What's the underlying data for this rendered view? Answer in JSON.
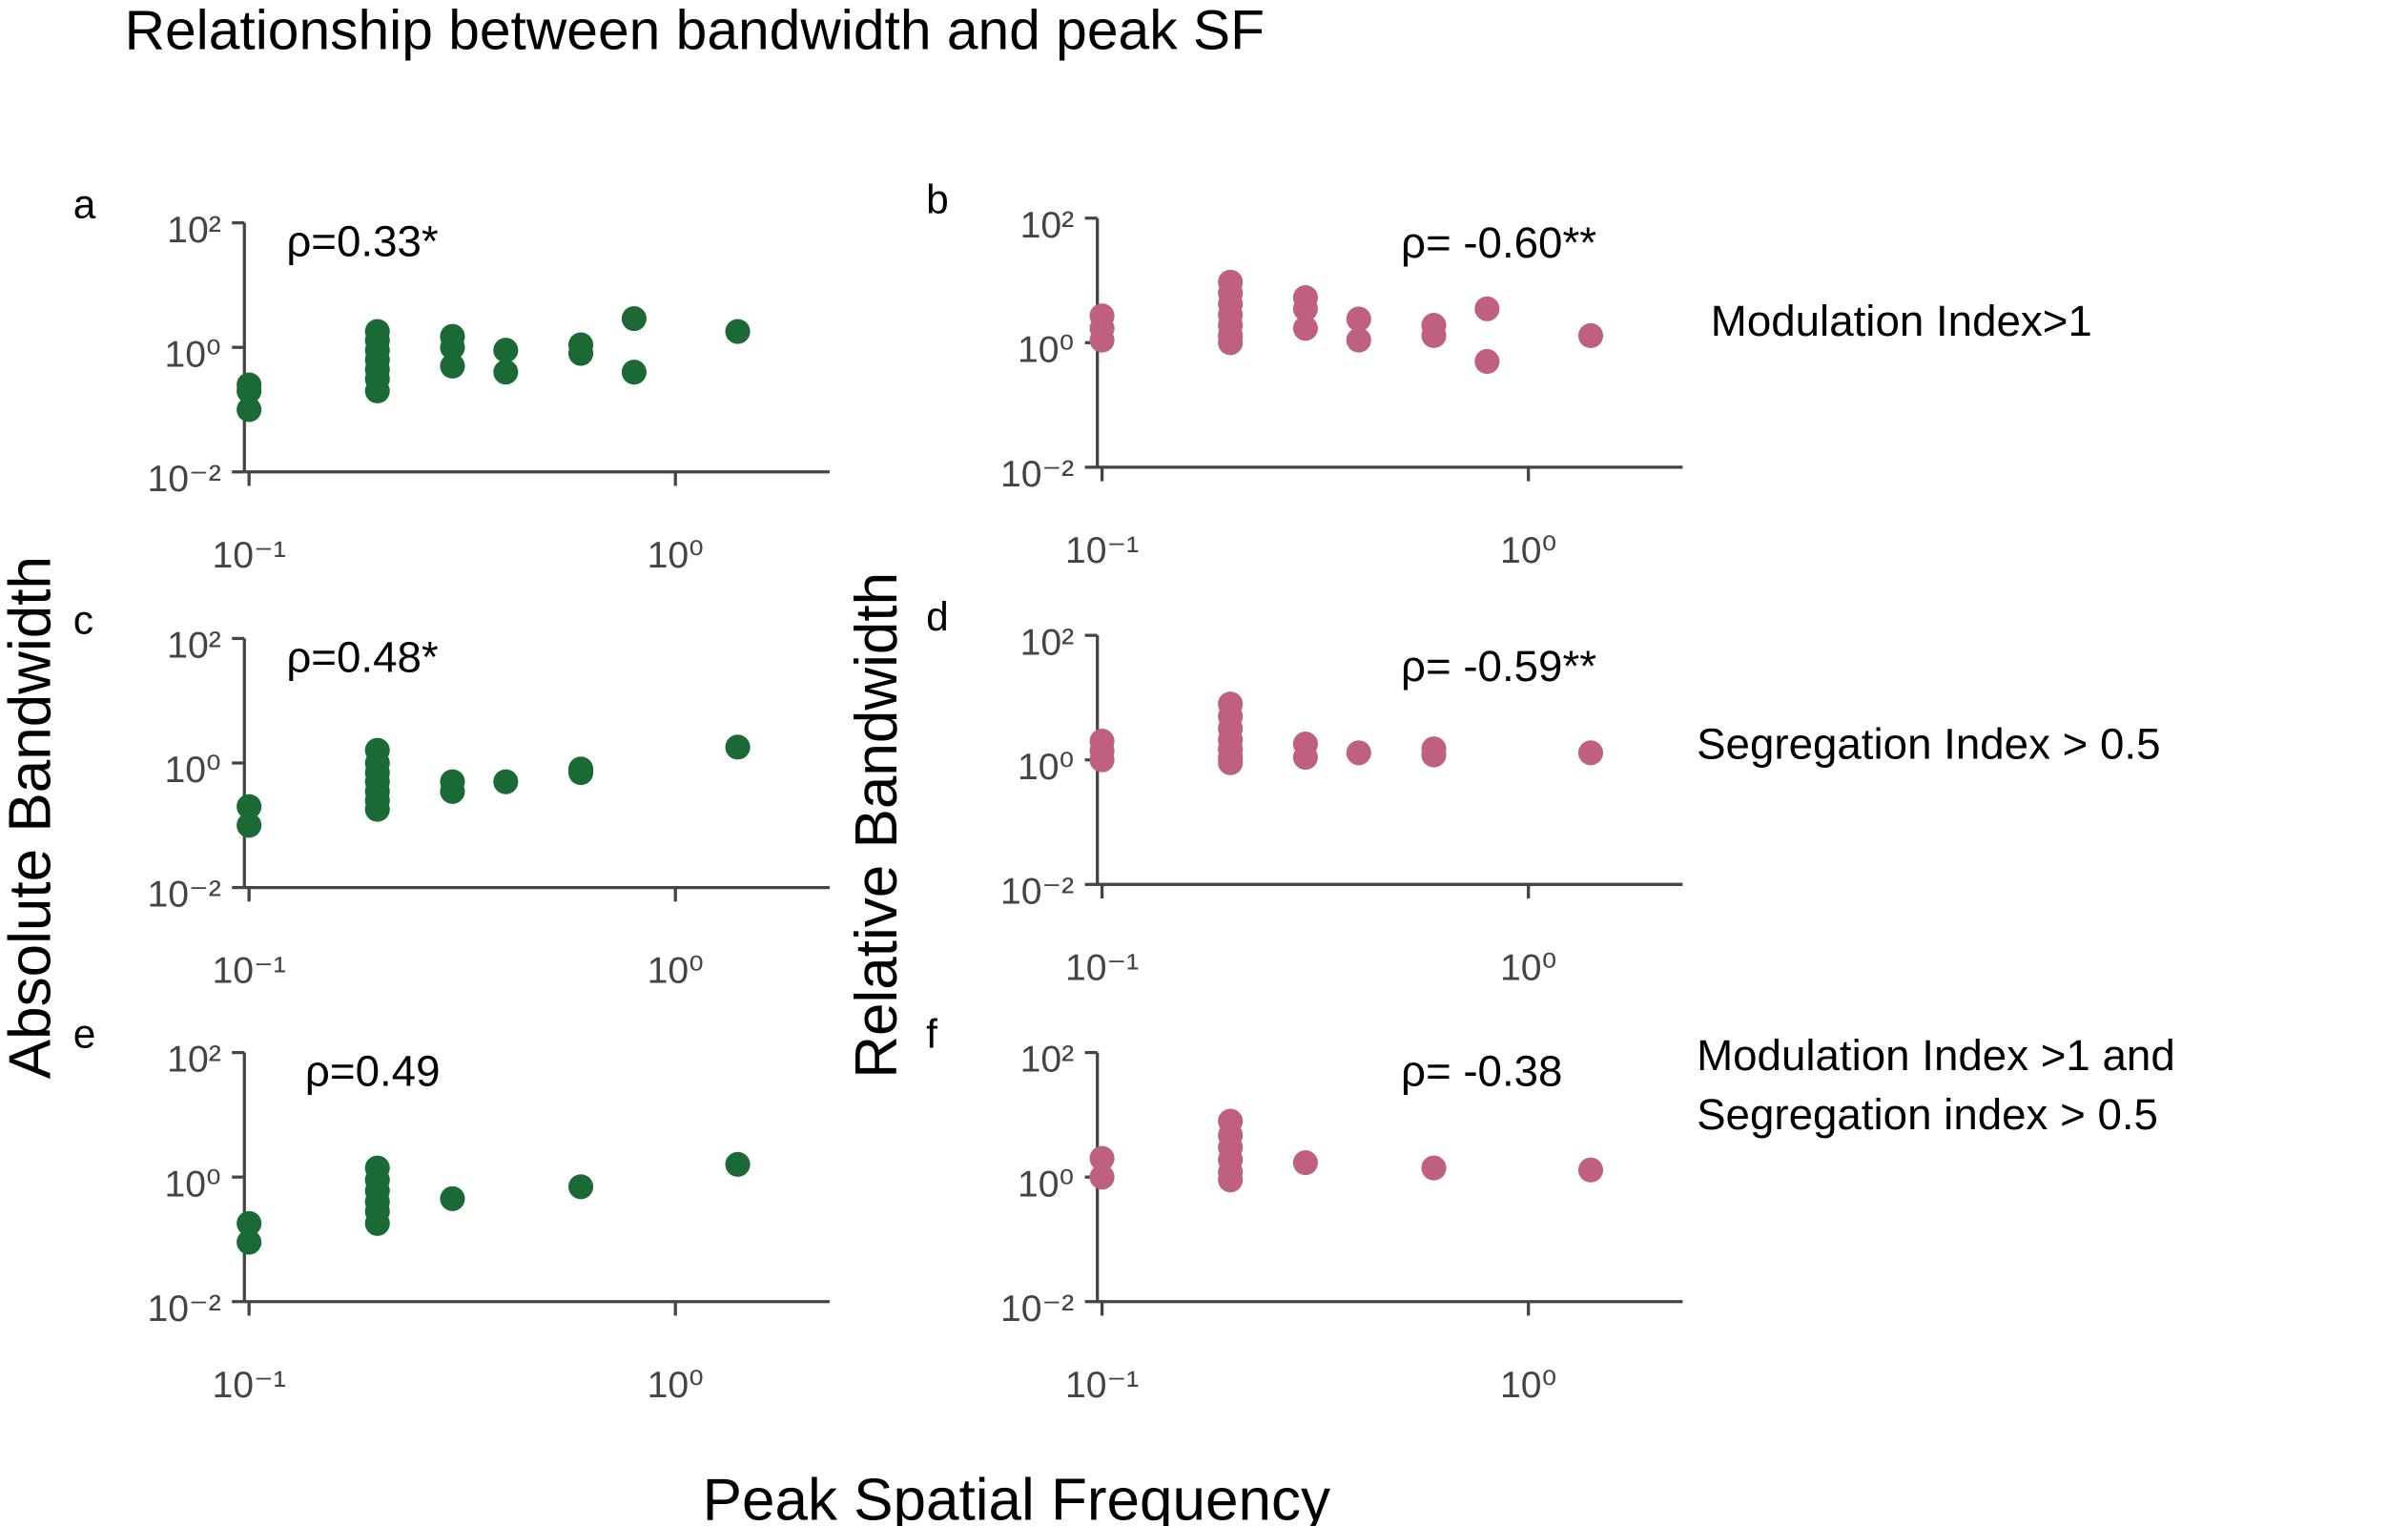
{
  "title": "Relationship between bandwidth and peak SF",
  "x_label": "Peak Spatial Frequency",
  "y_labels": [
    "Absolute Bandwidth",
    "Relative Bandwidth"
  ],
  "row_labels": [
    [
      "Modulation Index>1"
    ],
    [
      "Segregation Index > 0.5"
    ],
    [
      "Modulation Index  >1 and",
      "Segregation index > 0.5"
    ]
  ],
  "chart_data": [
    {
      "type": "scatter",
      "panel": "a",
      "annotation": "ρ=0.33*",
      "color": "#1b6a36",
      "log_x": true,
      "log_y": true,
      "xlim": [
        0.1,
        2.3
      ],
      "ylim": [
        0.01,
        100
      ],
      "xticks": [
        {
          "value": 0.1,
          "label": "10⁻¹"
        },
        {
          "value": 1,
          "label": "10⁰"
        }
      ],
      "yticks": [
        {
          "value": 0.01,
          "label": "10⁻²"
        },
        {
          "value": 1,
          "label": "10⁰"
        },
        {
          "value": 100,
          "label": "10²"
        }
      ],
      "x": [
        0.1,
        0.1,
        0.1,
        0.2,
        0.2,
        0.2,
        0.2,
        0.2,
        0.2,
        0.2,
        0.3,
        0.3,
        0.3,
        0.4,
        0.4,
        0.6,
        0.6,
        0.8,
        0.8,
        1.4
      ],
      "values": [
        0.25,
        0.2,
        0.1,
        1.8,
        1.3,
        0.9,
        0.63,
        0.44,
        0.31,
        0.2,
        1.5,
        1,
        0.5,
        0.9,
        0.4,
        1.1,
        0.8,
        2.9,
        0.4,
        1.8
      ]
    },
    {
      "type": "scatter",
      "panel": "b",
      "annotation": "ρ= -0.60**",
      "color": "#c0607f",
      "log_x": true,
      "log_y": true,
      "xlim": [
        0.1,
        2.3
      ],
      "ylim": [
        0.01,
        100
      ],
      "xticks": [
        {
          "value": 0.1,
          "label": "10⁻¹"
        },
        {
          "value": 1,
          "label": "10⁰"
        }
      ],
      "yticks": [
        {
          "value": 0.01,
          "label": "10⁻²"
        },
        {
          "value": 1,
          "label": "10⁰"
        },
        {
          "value": 100,
          "label": "10²"
        }
      ],
      "x": [
        0.1,
        0.1,
        0.1,
        0.2,
        0.2,
        0.2,
        0.2,
        0.2,
        0.2,
        0.2,
        0.3,
        0.3,
        0.3,
        0.4,
        0.4,
        0.6,
        0.6,
        0.8,
        0.8,
        1.4
      ],
      "values": [
        2.7,
        1.7,
        1.1,
        9.4,
        6.3,
        4.2,
        2.8,
        1.9,
        1.3,
        1.0,
        5.3,
        3.5,
        1.7,
        2.4,
        1.1,
        1.9,
        1.3,
        3.5,
        0.5,
        1.3
      ]
    },
    {
      "type": "scatter",
      "panel": "c",
      "annotation": "ρ=0.48*",
      "color": "#1b6a36",
      "log_x": true,
      "log_y": true,
      "xlim": [
        0.1,
        2.3
      ],
      "ylim": [
        0.01,
        100
      ],
      "xticks": [
        {
          "value": 0.1,
          "label": "10⁻¹"
        },
        {
          "value": 1,
          "label": "10⁰"
        }
      ],
      "yticks": [
        {
          "value": 0.01,
          "label": "10⁻²"
        },
        {
          "value": 1,
          "label": "10⁰"
        },
        {
          "value": 100,
          "label": "10²"
        }
      ],
      "x": [
        0.1,
        0.1,
        0.2,
        0.2,
        0.2,
        0.2,
        0.2,
        0.2,
        0.2,
        0.3,
        0.3,
        0.4,
        0.6,
        0.6,
        1.4
      ],
      "values": [
        0.2,
        0.1,
        1.6,
        1.0,
        0.7,
        0.5,
        0.35,
        0.25,
        0.18,
        0.5,
        0.35,
        0.5,
        0.8,
        0.7,
        1.8
      ]
    },
    {
      "type": "scatter",
      "panel": "d",
      "annotation": "ρ= -0.59**",
      "color": "#c0607f",
      "log_x": true,
      "log_y": true,
      "xlim": [
        0.1,
        2.3
      ],
      "ylim": [
        0.01,
        100
      ],
      "xticks": [
        {
          "value": 0.1,
          "label": "10⁻¹"
        },
        {
          "value": 1,
          "label": "10⁰"
        }
      ],
      "yticks": [
        {
          "value": 0.01,
          "label": "10⁻²"
        },
        {
          "value": 1,
          "label": "10⁰"
        },
        {
          "value": 100,
          "label": "10²"
        }
      ],
      "x": [
        0.1,
        0.1,
        0.1,
        0.2,
        0.2,
        0.2,
        0.2,
        0.2,
        0.2,
        0.2,
        0.3,
        0.3,
        0.4,
        0.6,
        0.6,
        1.4
      ],
      "values": [
        2.0,
        1.4,
        1.0,
        7.9,
        5.0,
        3.2,
        2.1,
        1.5,
        1.1,
        0.9,
        1.8,
        1.1,
        1.3,
        1.5,
        1.2,
        1.3
      ]
    },
    {
      "type": "scatter",
      "panel": "e",
      "annotation": "ρ=0.49",
      "color": "#1b6a36",
      "log_x": true,
      "log_y": true,
      "xlim": [
        0.1,
        2.3
      ],
      "ylim": [
        0.01,
        100
      ],
      "xticks": [
        {
          "value": 0.1,
          "label": "10⁻¹"
        },
        {
          "value": 1,
          "label": "10⁰"
        }
      ],
      "yticks": [
        {
          "value": 0.01,
          "label": "10⁻²"
        },
        {
          "value": 1,
          "label": "10⁰"
        },
        {
          "value": 100,
          "label": "10²"
        }
      ],
      "x": [
        0.1,
        0.1,
        0.2,
        0.2,
        0.2,
        0.2,
        0.2,
        0.2,
        0.3,
        0.6,
        1.4
      ],
      "values": [
        0.18,
        0.09,
        1.4,
        0.9,
        0.6,
        0.4,
        0.28,
        0.18,
        0.45,
        0.7,
        1.6
      ]
    },
    {
      "type": "scatter",
      "panel": "f",
      "annotation": "ρ= -0.38",
      "color": "#c0607f",
      "log_x": true,
      "log_y": true,
      "xlim": [
        0.1,
        2.3
      ],
      "ylim": [
        0.01,
        100
      ],
      "xticks": [
        {
          "value": 0.1,
          "label": "10⁻¹"
        },
        {
          "value": 1,
          "label": "10⁰"
        }
      ],
      "yticks": [
        {
          "value": 0.01,
          "label": "10⁻²"
        },
        {
          "value": 1,
          "label": "10⁰"
        },
        {
          "value": 100,
          "label": "10²"
        }
      ],
      "x": [
        0.1,
        0.1,
        0.2,
        0.2,
        0.2,
        0.2,
        0.2,
        0.2,
        0.3,
        0.6,
        1.4
      ],
      "values": [
        2.0,
        1.0,
        7.9,
        4.7,
        3.0,
        1.9,
        1.2,
        0.9,
        1.7,
        1.4,
        1.3
      ]
    }
  ]
}
